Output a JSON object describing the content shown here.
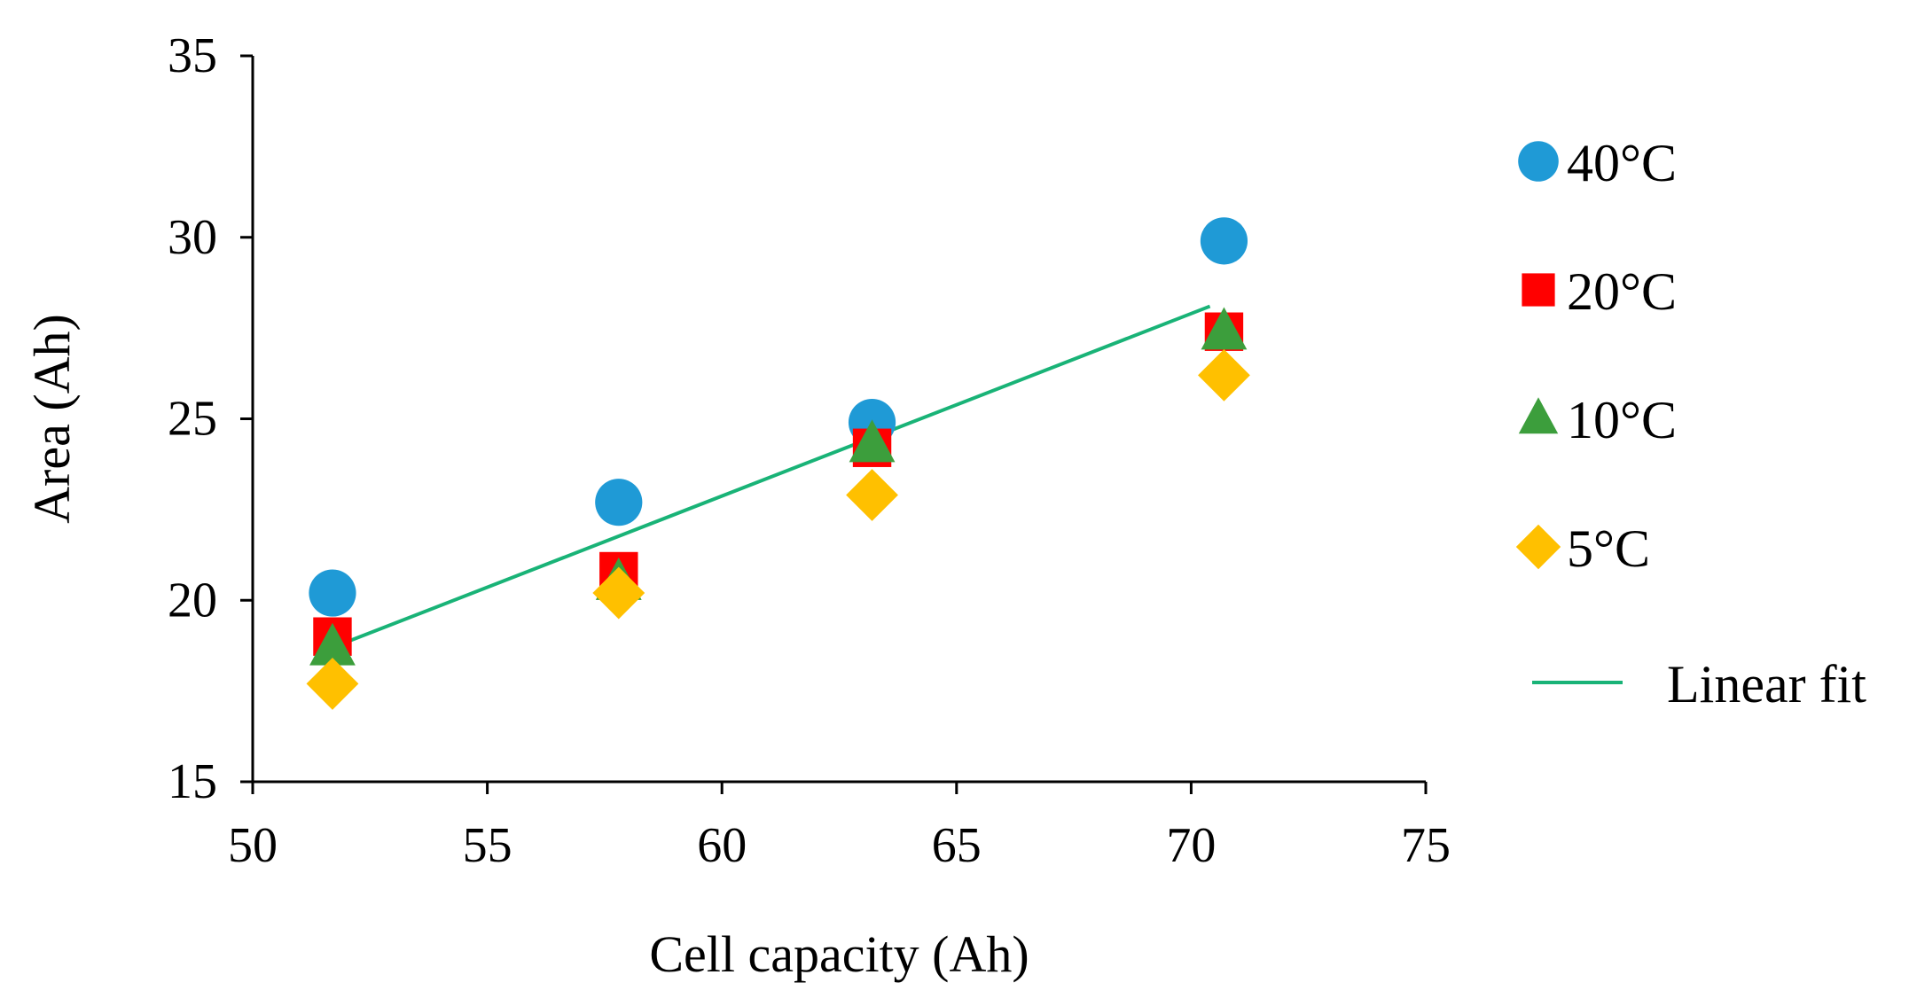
{
  "chart_data": {
    "type": "scatter",
    "title": "",
    "xlabel": "Cell capacity (Ah)",
    "ylabel": "Area (Ah)",
    "xlim": [
      50,
      75
    ],
    "ylim": [
      15,
      35
    ],
    "xticks": [
      50,
      55,
      60,
      65,
      70,
      75
    ],
    "yticks": [
      15,
      20,
      25,
      30,
      35
    ],
    "grid": false,
    "legend_position": "right",
    "series": [
      {
        "name": "40°C",
        "marker": "circle",
        "color": "#1f9ad6",
        "x": [
          51.7,
          57.8,
          63.2,
          70.7
        ],
        "y": [
          20.2,
          22.7,
          24.9,
          29.9
        ]
      },
      {
        "name": "20°C",
        "marker": "square",
        "color": "#ff0000",
        "x": [
          51.7,
          57.8,
          63.2,
          70.7
        ],
        "y": [
          19.0,
          20.8,
          24.2,
          27.4
        ]
      },
      {
        "name": "10°C",
        "marker": "triangle",
        "color": "#3c9e3c",
        "x": [
          51.7,
          57.8,
          63.2,
          70.7
        ],
        "y": [
          18.7,
          20.5,
          24.3,
          27.4
        ]
      },
      {
        "name": "5°C",
        "marker": "diamond",
        "color": "#ffc000",
        "x": [
          51.7,
          57.8,
          63.2,
          70.7
        ],
        "y": [
          17.7,
          20.2,
          22.9,
          26.2
        ]
      }
    ],
    "fit": {
      "name": "Linear fit",
      "color": "#19b377",
      "x": [
        51.7,
        70.4
      ],
      "y": [
        18.7,
        28.1
      ]
    }
  }
}
